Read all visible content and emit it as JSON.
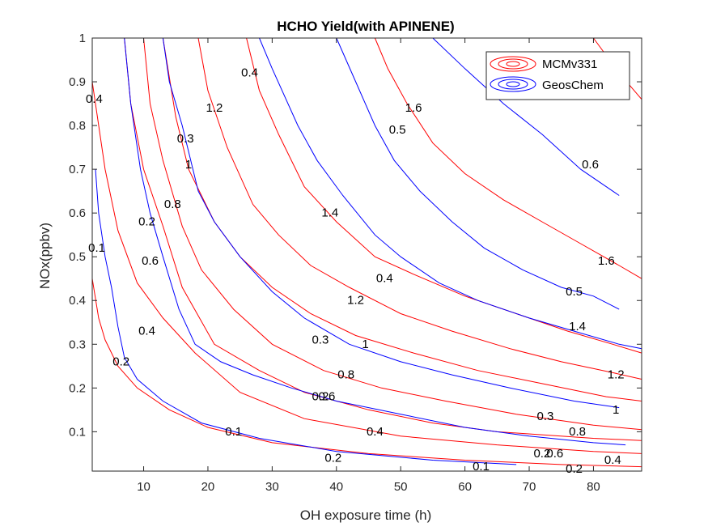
{
  "chart_data": {
    "type": "contour",
    "title": "HCHO Yield(with APINENE)",
    "xlabel": "OH exposure time (h)",
    "ylabel": "NOx(ppbv)",
    "xlim": [
      2,
      87.5
    ],
    "ylim": [
      0.01,
      1
    ],
    "xticks": [
      10,
      20,
      30,
      40,
      50,
      60,
      70,
      80
    ],
    "yticks": [
      0.1,
      0.2,
      0.3,
      0.4,
      0.5,
      0.6,
      0.7,
      0.8,
      0.9,
      1
    ],
    "xtick_labels": [
      "10",
      "20",
      "30",
      "40",
      "50",
      "60",
      "70",
      "80"
    ],
    "ytick_labels": [
      "0.1",
      "0.2",
      "0.3",
      "0.4",
      "0.5",
      "0.6",
      "0.7",
      "0.8",
      "0.9",
      "1"
    ],
    "grid": false,
    "legend_position": "top-right",
    "series": [
      {
        "name": "MCMv331",
        "color": "#ff0000",
        "contours": [
          {
            "level": "0.2",
            "points": [
              [
                2,
                0.45
              ],
              [
                3,
                0.36
              ],
              [
                4,
                0.31
              ],
              [
                6,
                0.25
              ],
              [
                9,
                0.2
              ],
              [
                14,
                0.15
              ],
              [
                20,
                0.11
              ],
              [
                30,
                0.075
              ],
              [
                45,
                0.05
              ],
              [
                60,
                0.035
              ],
              [
                75,
                0.025
              ],
              [
                87.5,
                0.02
              ]
            ]
          },
          {
            "level": "0.4",
            "points": [
              [
                2,
                0.9
              ],
              [
                4,
                0.7
              ],
              [
                6,
                0.56
              ],
              [
                9,
                0.44
              ],
              [
                13,
                0.36
              ],
              [
                18,
                0.28
              ],
              [
                25,
                0.19
              ],
              [
                35,
                0.13
              ],
              [
                50,
                0.09
              ],
              [
                65,
                0.07
              ],
              [
                80,
                0.055
              ],
              [
                87.5,
                0.05
              ]
            ]
          },
          {
            "level": "0.6",
            "points": [
              [
                7,
                1.0
              ],
              [
                8,
                0.85
              ],
              [
                10,
                0.7
              ],
              [
                13,
                0.57
              ],
              [
                16,
                0.43
              ],
              [
                21,
                0.3
              ],
              [
                28,
                0.24
              ],
              [
                35,
                0.19
              ],
              [
                45,
                0.15
              ],
              [
                55,
                0.12
              ],
              [
                65,
                0.1
              ],
              [
                80,
                0.085
              ],
              [
                87.5,
                0.08
              ]
            ]
          },
          {
            "level": "0.8",
            "points": [
              [
                10,
                1.0
              ],
              [
                11,
                0.85
              ],
              [
                13,
                0.72
              ],
              [
                16,
                0.57
              ],
              [
                19,
                0.47
              ],
              [
                24,
                0.38
              ],
              [
                30,
                0.3
              ],
              [
                38,
                0.24
              ],
              [
                47,
                0.2
              ],
              [
                57,
                0.17
              ],
              [
                68,
                0.14
              ],
              [
                80,
                0.115
              ],
              [
                87.5,
                0.105
              ]
            ]
          },
          {
            "level": "1",
            "points": [
              [
                13,
                1.0
              ],
              [
                15,
                0.82
              ],
              [
                17,
                0.7
              ],
              [
                21,
                0.58
              ],
              [
                25,
                0.5
              ],
              [
                30,
                0.43
              ],
              [
                36,
                0.37
              ],
              [
                43,
                0.32
              ],
              [
                52,
                0.28
              ],
              [
                62,
                0.24
              ],
              [
                72,
                0.21
              ],
              [
                82,
                0.18
              ],
              [
                87.5,
                0.17
              ]
            ]
          },
          {
            "level": "1.2",
            "points": [
              [
                18.5,
                1.0
              ],
              [
                20,
                0.88
              ],
              [
                23,
                0.75
              ],
              [
                27,
                0.62
              ],
              [
                31,
                0.55
              ],
              [
                36,
                0.48
              ],
              [
                42,
                0.43
              ],
              [
                50,
                0.37
              ],
              [
                58,
                0.33
              ],
              [
                67,
                0.29
              ],
              [
                75,
                0.26
              ],
              [
                83,
                0.235
              ],
              [
                87.5,
                0.22
              ]
            ]
          },
          {
            "level": "1.4",
            "points": [
              [
                26,
                1.0
              ],
              [
                28,
                0.88
              ],
              [
                31,
                0.78
              ],
              [
                35,
                0.66
              ],
              [
                40,
                0.58
              ],
              [
                46,
                0.5
              ],
              [
                52,
                0.46
              ],
              [
                60,
                0.41
              ],
              [
                68,
                0.37
              ],
              [
                76,
                0.33
              ],
              [
                83,
                0.3
              ],
              [
                87.5,
                0.28
              ]
            ]
          },
          {
            "level": "1.6",
            "points": [
              [
                46,
                1.0
              ],
              [
                48,
                0.93
              ],
              [
                51,
                0.85
              ],
              [
                55,
                0.76
              ],
              [
                60,
                0.69
              ],
              [
                66,
                0.63
              ],
              [
                72,
                0.58
              ],
              [
                78,
                0.53
              ],
              [
                84,
                0.48
              ],
              [
                87.5,
                0.45
              ]
            ]
          },
          {
            "level": "1.8",
            "points": [
              [
                80,
                1.0
              ],
              [
                84,
                0.92
              ],
              [
                87.5,
                0.86
              ]
            ]
          }
        ],
        "labels": [
          {
            "text": "0.4",
            "at": [
              2.3,
              0.86
            ]
          },
          {
            "text": "0.2",
            "at": [
              6.5,
              0.26
            ]
          },
          {
            "text": "0.4",
            "at": [
              10.5,
              0.33
            ]
          },
          {
            "text": "0.6",
            "at": [
              11,
              0.49
            ]
          },
          {
            "text": "0.8",
            "at": [
              14.5,
              0.62
            ]
          },
          {
            "text": "1",
            "at": [
              17,
              0.71
            ]
          },
          {
            "text": "1.2",
            "at": [
              21,
              0.84
            ]
          },
          {
            "text": "1.4",
            "at": [
              39,
              0.6
            ]
          },
          {
            "text": "1.6",
            "at": [
              52,
              0.84
            ]
          },
          {
            "text": "1.2",
            "at": [
              43,
              0.4
            ]
          },
          {
            "text": "1",
            "at": [
              44.5,
              0.3
            ]
          },
          {
            "text": "0.8",
            "at": [
              41.5,
              0.23
            ]
          },
          {
            "text": "0.6",
            "at": [
              38.5,
              0.18
            ]
          },
          {
            "text": "0.4",
            "at": [
              46,
              0.1
            ]
          },
          {
            "text": "1.6",
            "at": [
              82,
              0.49
            ]
          },
          {
            "text": "1.4",
            "at": [
              77.5,
              0.34
            ]
          },
          {
            "text": "1.2",
            "at": [
              83.5,
              0.23
            ]
          },
          {
            "text": "1",
            "at": [
              83.5,
              0.15
            ]
          },
          {
            "text": "0.8",
            "at": [
              77.5,
              0.1
            ]
          },
          {
            "text": "0.6",
            "at": [
              74,
              0.05
            ]
          },
          {
            "text": "0.4",
            "at": [
              83,
              0.035
            ]
          },
          {
            "text": "0.2",
            "at": [
              77,
              0.015
            ]
          }
        ]
      },
      {
        "name": "GeosChem",
        "color": "#0000ff",
        "contours": [
          {
            "level": "0.1",
            "points": [
              [
                2.5,
                0.7
              ],
              [
                3,
                0.6
              ],
              [
                4,
                0.5
              ],
              [
                5,
                0.43
              ],
              [
                6,
                0.34
              ],
              [
                7,
                0.27
              ],
              [
                9,
                0.22
              ],
              [
                13,
                0.17
              ],
              [
                19,
                0.12
              ],
              [
                28,
                0.085
              ],
              [
                40,
                0.055
              ],
              [
                55,
                0.035
              ],
              [
                68,
                0.025
              ]
            ]
          },
          {
            "level": "0.2",
            "points": [
              [
                7,
                1.0
              ],
              [
                8,
                0.85
              ],
              [
                9.5,
                0.7
              ],
              [
                11,
                0.6
              ],
              [
                13,
                0.5
              ],
              [
                15.5,
                0.38
              ],
              [
                18,
                0.3
              ],
              [
                22,
                0.26
              ],
              [
                27,
                0.23
              ],
              [
                33,
                0.2
              ],
              [
                40,
                0.17
              ],
              [
                50,
                0.14
              ],
              [
                60,
                0.11
              ],
              [
                70,
                0.09
              ],
              [
                80,
                0.075
              ],
              [
                85,
                0.07
              ]
            ]
          },
          {
            "level": "0.3",
            "points": [
              [
                13,
                1.0
              ],
              [
                14,
                0.9
              ],
              [
                16,
                0.8
              ],
              [
                18.5,
                0.65
              ],
              [
                21,
                0.58
              ],
              [
                25,
                0.5
              ],
              [
                30,
                0.42
              ],
              [
                35,
                0.36
              ],
              [
                42,
                0.3
              ],
              [
                50,
                0.26
              ],
              [
                58,
                0.23
              ],
              [
                67,
                0.2
              ],
              [
                77,
                0.17
              ],
              [
                84,
                0.155
              ]
            ]
          },
          {
            "level": "0.4",
            "points": [
              [
                28,
                1.0
              ],
              [
                30,
                0.93
              ],
              [
                34,
                0.8
              ],
              [
                37,
                0.72
              ],
              [
                41,
                0.64
              ],
              [
                46,
                0.55
              ],
              [
                50,
                0.5
              ],
              [
                56,
                0.44
              ],
              [
                62,
                0.4
              ],
              [
                70,
                0.36
              ],
              [
                77,
                0.33
              ],
              [
                84,
                0.3
              ],
              [
                87.5,
                0.29
              ]
            ]
          },
          {
            "level": "0.5",
            "points": [
              [
                40,
                1.0
              ],
              [
                43,
                0.9
              ],
              [
                46,
                0.8
              ],
              [
                49,
                0.72
              ],
              [
                53,
                0.65
              ],
              [
                58,
                0.58
              ],
              [
                63,
                0.52
              ],
              [
                69,
                0.47
              ],
              [
                75,
                0.43
              ],
              [
                80,
                0.41
              ],
              [
                84,
                0.38
              ]
            ]
          },
          {
            "level": "0.6",
            "points": [
              [
                55,
                1.0
              ],
              [
                60,
                0.93
              ],
              [
                66,
                0.85
              ],
              [
                72,
                0.78
              ],
              [
                78,
                0.7
              ],
              [
                84,
                0.64
              ]
            ]
          }
        ],
        "labels": [
          {
            "text": "0.1",
            "at": [
              2.7,
              0.52
            ]
          },
          {
            "text": "0.2",
            "at": [
              10.5,
              0.58
            ]
          },
          {
            "text": "0.3",
            "at": [
              16.5,
              0.77
            ]
          },
          {
            "text": "0.4",
            "at": [
              26.5,
              0.92
            ]
          },
          {
            "text": "0.5",
            "at": [
              49.5,
              0.79
            ]
          },
          {
            "text": "0.6",
            "at": [
              79.5,
              0.71
            ]
          },
          {
            "text": "0.1",
            "at": [
              24,
              0.1
            ]
          },
          {
            "text": "0.2",
            "at": [
              37.5,
              0.18
            ]
          },
          {
            "text": "0.3",
            "at": [
              37.5,
              0.31
            ]
          },
          {
            "text": "0.4",
            "at": [
              47.5,
              0.45
            ]
          },
          {
            "text": "0.5",
            "at": [
              77,
              0.42
            ]
          },
          {
            "text": "0.2",
            "at": [
              39.5,
              0.04
            ]
          },
          {
            "text": "0.1",
            "at": [
              62.5,
              0.02
            ]
          },
          {
            "text": "0.3",
            "at": [
              72.5,
              0.135
            ]
          },
          {
            "text": "0.2",
            "at": [
              72,
              0.05
            ]
          }
        ]
      }
    ]
  }
}
